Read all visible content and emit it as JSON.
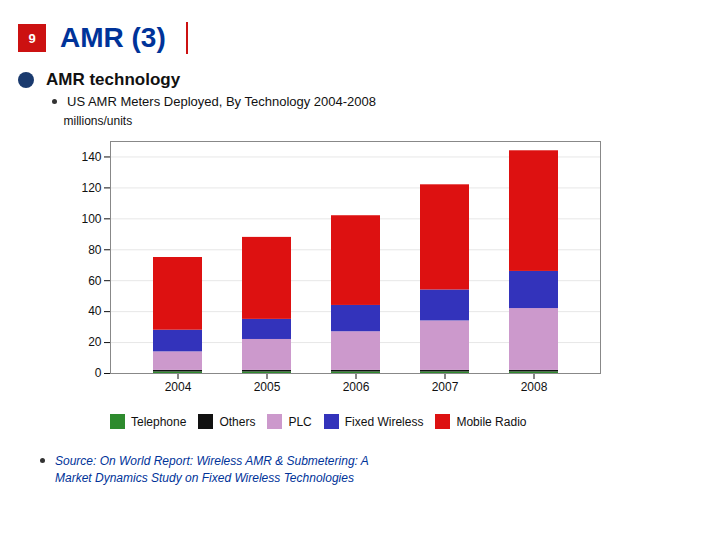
{
  "chart_data": {
    "type": "bar",
    "title": "AMR (3)",
    "annotations": [
      "9",
      "AMR technology",
      "US AMR Meters Deployed, By Technology 2004-2008",
      "Source: On World Report: Wireless AMR & Submetering: A",
      "Market Dynamics Study on Fixed Wireless Technologies"
    ],
    "ylabel": "millions/units",
    "categories": [
      "2004",
      "2005",
      "2006",
      "2007",
      "2008"
    ],
    "series": [
      {
        "name": "Telephone",
        "color": "#2e8b2e",
        "values": [
          1,
          1,
          1,
          1,
          1
        ]
      },
      {
        "name": "Others",
        "color": "#111111",
        "values": [
          1,
          1,
          1,
          1,
          1
        ]
      },
      {
        "name": "PLC",
        "color": "#cc99cc",
        "values": [
          12,
          20,
          25,
          32,
          40
        ]
      },
      {
        "name": "Fixed Wireless",
        "color": "#3333bb",
        "values": [
          14,
          13,
          17,
          20,
          24
        ]
      },
      {
        "name": "Mobile Radio",
        "color": "#dd1111",
        "values": [
          47,
          53,
          58,
          68,
          78
        ]
      }
    ],
    "stacked": true,
    "ylim": [
      0,
      150
    ],
    "yticks": [
      0,
      20,
      40,
      60,
      80,
      100,
      120,
      140
    ],
    "grid": true,
    "legend": "bottom"
  }
}
